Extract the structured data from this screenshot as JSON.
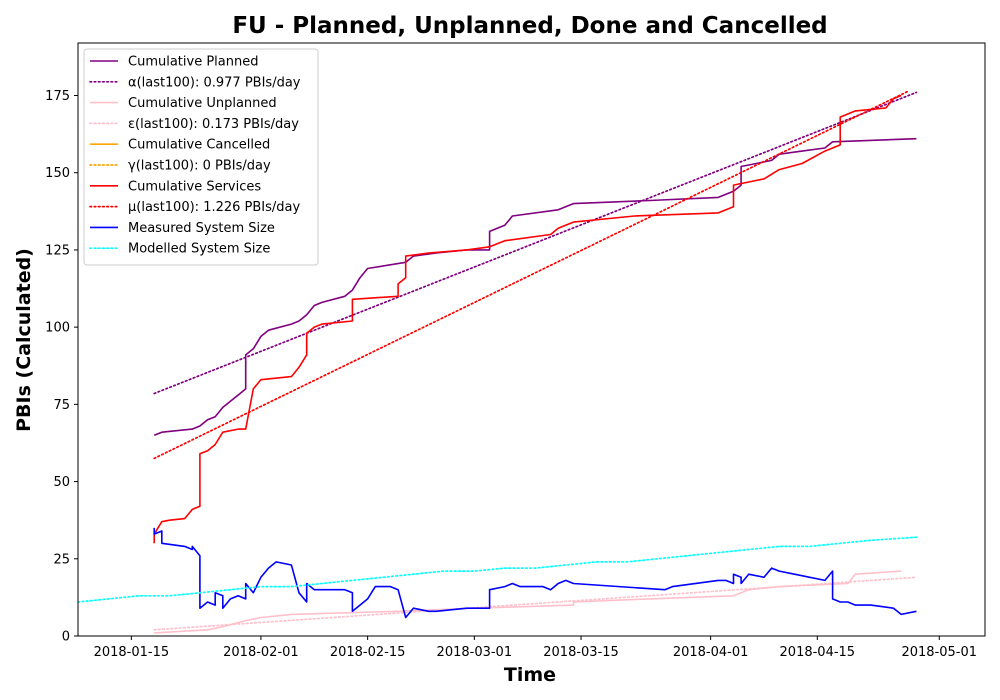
{
  "chart_data": {
    "type": "line",
    "title": "FU - Planned, Unplanned, Done  and Cancelled",
    "xlabel": "Time",
    "ylabel": "PBIs (Calculated)",
    "xlim": [
      "2018-01-08",
      "2018-05-07"
    ],
    "ylim": [
      0,
      192
    ],
    "x_ticks": [
      "2018-01-15",
      "2018-02-01",
      "2018-02-15",
      "2018-03-01",
      "2018-03-15",
      "2018-04-01",
      "2018-04-15",
      "2018-05-01"
    ],
    "y_ticks": [
      0,
      25,
      50,
      75,
      100,
      125,
      150,
      175
    ],
    "grid": false,
    "legend_position": "upper-left",
    "series": [
      {
        "name": "Cumulative Planned",
        "color": "#800080",
        "style": "solid",
        "points": [
          [
            "2018-01-18",
            65
          ],
          [
            "2018-01-19",
            66
          ],
          [
            "2018-01-23",
            67
          ],
          [
            "2018-01-24",
            68
          ],
          [
            "2018-01-25",
            70
          ],
          [
            "2018-01-26",
            71
          ],
          [
            "2018-01-27",
            74
          ],
          [
            "2018-01-28",
            76
          ],
          [
            "2018-01-29",
            78
          ],
          [
            "2018-01-30",
            80
          ],
          [
            "2018-01-30",
            91
          ],
          [
            "2018-01-31",
            93
          ],
          [
            "2018-02-01",
            97
          ],
          [
            "2018-02-02",
            99
          ],
          [
            "2018-02-05",
            101
          ],
          [
            "2018-02-06",
            102
          ],
          [
            "2018-02-07",
            104
          ],
          [
            "2018-02-08",
            107
          ],
          [
            "2018-02-09",
            108
          ],
          [
            "2018-02-12",
            110
          ],
          [
            "2018-02-13",
            112
          ],
          [
            "2018-02-14",
            116
          ],
          [
            "2018-02-15",
            119
          ],
          [
            "2018-02-20",
            121
          ],
          [
            "2018-02-21",
            123
          ],
          [
            "2018-02-24",
            124
          ],
          [
            "2018-02-28",
            125
          ],
          [
            "2018-03-03",
            125
          ],
          [
            "2018-03-03",
            131
          ],
          [
            "2018-03-05",
            133
          ],
          [
            "2018-03-06",
            136
          ],
          [
            "2018-03-12",
            138
          ],
          [
            "2018-03-14",
            140
          ],
          [
            "2018-03-24",
            141
          ],
          [
            "2018-04-02",
            142
          ],
          [
            "2018-04-04",
            144
          ],
          [
            "2018-04-05",
            146
          ],
          [
            "2018-04-05",
            152
          ],
          [
            "2018-04-07",
            153
          ],
          [
            "2018-04-09",
            154
          ],
          [
            "2018-04-10",
            156
          ],
          [
            "2018-04-13",
            157
          ],
          [
            "2018-04-16",
            158
          ],
          [
            "2018-04-17",
            160
          ],
          [
            "2018-04-28",
            161
          ]
        ]
      },
      {
        "name": "α(last100): 0.977 PBIs/day",
        "color": "#800080",
        "style": "dotted",
        "points": [
          [
            "2018-01-18",
            78.5
          ],
          [
            "2018-04-28",
            176
          ]
        ]
      },
      {
        "name": "Cumulative Unplanned",
        "color": "#ffc0cb",
        "style": "solid",
        "points": [
          [
            "2018-01-18",
            1
          ],
          [
            "2018-01-25",
            2
          ],
          [
            "2018-01-27",
            3
          ],
          [
            "2018-01-30",
            5
          ],
          [
            "2018-02-01",
            6
          ],
          [
            "2018-02-05",
            7
          ],
          [
            "2018-02-12",
            7.5
          ],
          [
            "2018-02-19",
            8
          ],
          [
            "2018-03-01",
            9
          ],
          [
            "2018-03-14",
            10
          ],
          [
            "2018-03-14",
            11
          ],
          [
            "2018-03-24",
            12
          ],
          [
            "2018-04-04",
            13
          ],
          [
            "2018-04-06",
            15
          ],
          [
            "2018-04-10",
            16
          ],
          [
            "2018-04-19",
            17
          ],
          [
            "2018-04-20",
            20
          ],
          [
            "2018-04-26",
            21
          ]
        ]
      },
      {
        "name": "ε(last100): 0.173 PBIs/day",
        "color": "#ffc0cb",
        "style": "dotted",
        "points": [
          [
            "2018-01-18",
            2
          ],
          [
            "2018-04-28",
            19
          ]
        ]
      },
      {
        "name": "Cumulative Cancelled",
        "color": "#ffa500",
        "style": "solid",
        "points": []
      },
      {
        "name": "γ(last100): 0 PBIs/day",
        "color": "#ffa500",
        "style": "dotted",
        "points": []
      },
      {
        "name": "Cumulative Services",
        "color": "#ff0000",
        "style": "solid",
        "points": [
          [
            "2018-01-18",
            30
          ],
          [
            "2018-01-18",
            33
          ],
          [
            "2018-01-19",
            37
          ],
          [
            "2018-01-20",
            37.5
          ],
          [
            "2018-01-22",
            38
          ],
          [
            "2018-01-23",
            41
          ],
          [
            "2018-01-24",
            42
          ],
          [
            "2018-01-24",
            59
          ],
          [
            "2018-01-25",
            60
          ],
          [
            "2018-01-26",
            62
          ],
          [
            "2018-01-27",
            66
          ],
          [
            "2018-01-29",
            67
          ],
          [
            "2018-01-30",
            67
          ],
          [
            "2018-01-31",
            80
          ],
          [
            "2018-02-01",
            83
          ],
          [
            "2018-02-05",
            84
          ],
          [
            "2018-02-06",
            87
          ],
          [
            "2018-02-07",
            91
          ],
          [
            "2018-02-07",
            98
          ],
          [
            "2018-02-08",
            100
          ],
          [
            "2018-02-09",
            101
          ],
          [
            "2018-02-13",
            102
          ],
          [
            "2018-02-13",
            109
          ],
          [
            "2018-02-19",
            110
          ],
          [
            "2018-02-19",
            114
          ],
          [
            "2018-02-20",
            116
          ],
          [
            "2018-02-20",
            123
          ],
          [
            "2018-02-23",
            124
          ],
          [
            "2018-02-28",
            125
          ],
          [
            "2018-03-03",
            126
          ],
          [
            "2018-03-05",
            128
          ],
          [
            "2018-03-11",
            130
          ],
          [
            "2018-03-12",
            132
          ],
          [
            "2018-03-14",
            134
          ],
          [
            "2018-03-22",
            136
          ],
          [
            "2018-04-02",
            137
          ],
          [
            "2018-04-04",
            139
          ],
          [
            "2018-04-04",
            146
          ],
          [
            "2018-04-08",
            148
          ],
          [
            "2018-04-10",
            151
          ],
          [
            "2018-04-13",
            153
          ],
          [
            "2018-04-16",
            157
          ],
          [
            "2018-04-18",
            159
          ],
          [
            "2018-04-18",
            168
          ],
          [
            "2018-04-20",
            170
          ],
          [
            "2018-04-24",
            171
          ],
          [
            "2018-04-25",
            174
          ],
          [
            "2018-04-26",
            175
          ]
        ]
      },
      {
        "name": "μ(last100): 1.226 PBIs/day",
        "color": "#ff0000",
        "style": "dotted",
        "points": [
          [
            "2018-01-18",
            57.5
          ],
          [
            "2018-04-27",
            176.5
          ]
        ]
      },
      {
        "name": "Measured System Size",
        "color": "#0000ff",
        "style": "solid",
        "points": [
          [
            "2018-01-18",
            35
          ],
          [
            "2018-01-18",
            33
          ],
          [
            "2018-01-19",
            34
          ],
          [
            "2018-01-19",
            30
          ],
          [
            "2018-01-22",
            29
          ],
          [
            "2018-01-23",
            28
          ],
          [
            "2018-01-23",
            29
          ],
          [
            "2018-01-24",
            26
          ],
          [
            "2018-01-24",
            9
          ],
          [
            "2018-01-25",
            11
          ],
          [
            "2018-01-26",
            10
          ],
          [
            "2018-01-26",
            14
          ],
          [
            "2018-01-27",
            13
          ],
          [
            "2018-01-27",
            9
          ],
          [
            "2018-01-28",
            12
          ],
          [
            "2018-01-29",
            13
          ],
          [
            "2018-01-30",
            12
          ],
          [
            "2018-01-30",
            17
          ],
          [
            "2018-01-31",
            14
          ],
          [
            "2018-02-01",
            19
          ],
          [
            "2018-02-02",
            22
          ],
          [
            "2018-02-03",
            24
          ],
          [
            "2018-02-05",
            23
          ],
          [
            "2018-02-06",
            14
          ],
          [
            "2018-02-07",
            11
          ],
          [
            "2018-02-07",
            17
          ],
          [
            "2018-02-08",
            15
          ],
          [
            "2018-02-12",
            15
          ],
          [
            "2018-02-13",
            14
          ],
          [
            "2018-02-13",
            8
          ],
          [
            "2018-02-14",
            10
          ],
          [
            "2018-02-15",
            12
          ],
          [
            "2018-02-16",
            16
          ],
          [
            "2018-02-18",
            16
          ],
          [
            "2018-02-19",
            15
          ],
          [
            "2018-02-20",
            6
          ],
          [
            "2018-02-21",
            9
          ],
          [
            "2018-02-23",
            8
          ],
          [
            "2018-02-24",
            8
          ],
          [
            "2018-02-28",
            9
          ],
          [
            "2018-03-03",
            9
          ],
          [
            "2018-03-03",
            15
          ],
          [
            "2018-03-05",
            16
          ],
          [
            "2018-03-06",
            17
          ],
          [
            "2018-03-07",
            16
          ],
          [
            "2018-03-10",
            16
          ],
          [
            "2018-03-11",
            15
          ],
          [
            "2018-03-12",
            17
          ],
          [
            "2018-03-13",
            18
          ],
          [
            "2018-03-14",
            17
          ],
          [
            "2018-03-26",
            15
          ],
          [
            "2018-03-27",
            16
          ],
          [
            "2018-04-02",
            18
          ],
          [
            "2018-04-03",
            18
          ],
          [
            "2018-04-04",
            17
          ],
          [
            "2018-04-04",
            20
          ],
          [
            "2018-04-05",
            19
          ],
          [
            "2018-04-05",
            17
          ],
          [
            "2018-04-06",
            20
          ],
          [
            "2018-04-08",
            19
          ],
          [
            "2018-04-09",
            22
          ],
          [
            "2018-04-10",
            21
          ],
          [
            "2018-04-12",
            20
          ],
          [
            "2018-04-16",
            18
          ],
          [
            "2018-04-17",
            21
          ],
          [
            "2018-04-17",
            12
          ],
          [
            "2018-04-18",
            11
          ],
          [
            "2018-04-19",
            11
          ],
          [
            "2018-04-20",
            10
          ],
          [
            "2018-04-22",
            10
          ],
          [
            "2018-04-25",
            9
          ],
          [
            "2018-04-26",
            7
          ],
          [
            "2018-04-28",
            8
          ]
        ]
      },
      {
        "name": "Modelled System Size",
        "color": "#00ffff",
        "style": "dotted",
        "points": [
          [
            "2018-01-08",
            11
          ],
          [
            "2018-01-12",
            12
          ],
          [
            "2018-01-16",
            13
          ],
          [
            "2018-01-20",
            13
          ],
          [
            "2018-01-24",
            14
          ],
          [
            "2018-01-28",
            15
          ],
          [
            "2018-02-01",
            16
          ],
          [
            "2018-02-05",
            16
          ],
          [
            "2018-02-09",
            17
          ],
          [
            "2018-02-13",
            18
          ],
          [
            "2018-02-17",
            19
          ],
          [
            "2018-02-21",
            20
          ],
          [
            "2018-02-25",
            21
          ],
          [
            "2018-03-01",
            21
          ],
          [
            "2018-03-05",
            22
          ],
          [
            "2018-03-09",
            22
          ],
          [
            "2018-03-13",
            23
          ],
          [
            "2018-03-17",
            24
          ],
          [
            "2018-03-21",
            24
          ],
          [
            "2018-03-25",
            25
          ],
          [
            "2018-03-29",
            26
          ],
          [
            "2018-04-02",
            27
          ],
          [
            "2018-04-06",
            28
          ],
          [
            "2018-04-10",
            29
          ],
          [
            "2018-04-14",
            29
          ],
          [
            "2018-04-18",
            30
          ],
          [
            "2018-04-22",
            31
          ],
          [
            "2018-04-28",
            32
          ]
        ]
      }
    ]
  }
}
